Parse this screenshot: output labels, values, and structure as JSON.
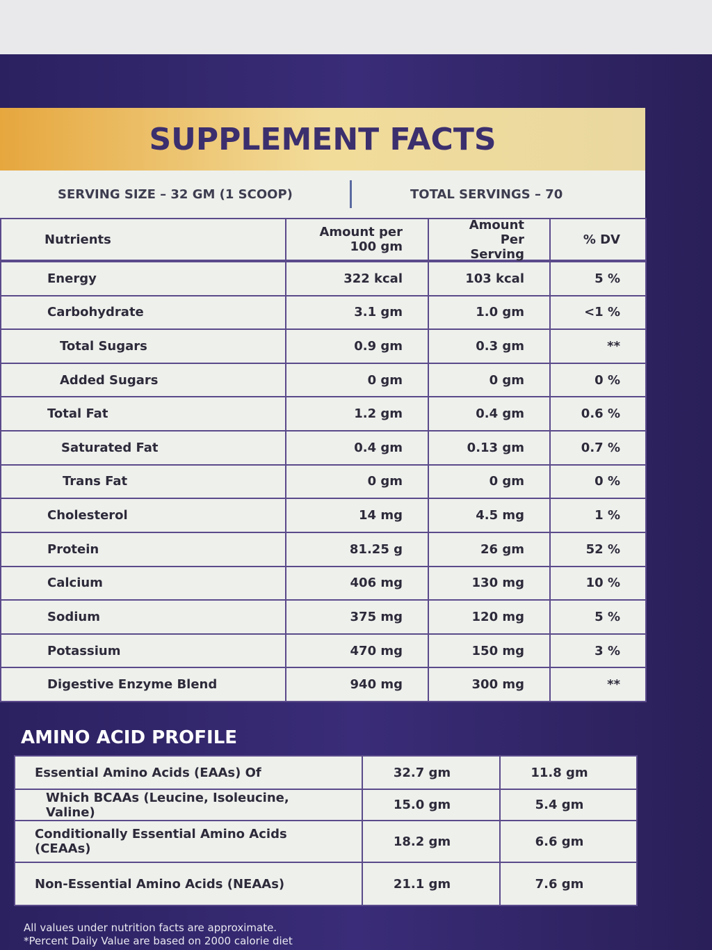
{
  "header": {
    "title": "SUPPLEMENT FACTS",
    "serving_size": "SERVING SIZE – 32 GM (1 SCOOP)",
    "total_servings": "TOTAL SERVINGS – 70"
  },
  "table": {
    "columns": [
      "Nutrients",
      "Amount per 100 gm",
      "Amount Per Serving",
      "% DV"
    ],
    "rows": [
      [
        "Energy",
        "322 kcal",
        "103 kcal",
        "5 %"
      ],
      [
        "Carbohydrate",
        "3.1 gm",
        "1.0 gm",
        "<1 %"
      ],
      [
        "Total Sugars",
        "0.9 gm",
        "0.3 gm",
        "**"
      ],
      [
        "Added Sugars",
        "0 gm",
        "0 gm",
        "0 %"
      ],
      [
        "Total Fat",
        "1.2 gm",
        "0.4 gm",
        "0.6 %"
      ],
      [
        "Saturated Fat",
        "0.4 gm",
        "0.13 gm",
        "0.7 %"
      ],
      [
        "Trans Fat",
        "0 gm",
        "0 gm",
        "0 %"
      ],
      [
        "Cholesterol",
        "14 mg",
        "4.5 mg",
        "1 %"
      ],
      [
        "Protein",
        "81.25 g",
        "26 gm",
        "52 %"
      ],
      [
        "Calcium",
        "406 mg",
        "130 mg",
        "10 %"
      ],
      [
        "Sodium",
        "375 mg",
        "120 mg",
        "5 %"
      ],
      [
        "Potassium",
        "470 mg",
        "150 mg",
        "3 %"
      ],
      [
        "Digestive Enzyme Blend",
        "940 mg",
        "300 mg",
        "**"
      ]
    ]
  },
  "amino": {
    "title": "AMINO ACID PROFILE",
    "rows": [
      [
        "Essential Amino Acids (EAAs) Of",
        "32.7 gm",
        "11.8 gm"
      ],
      [
        "Which BCAAs (Leucine, Isoleucine, Valine)",
        "15.0 gm",
        "5.4 gm"
      ],
      [
        "Conditionally Essential Amino Acids (CEAAs)",
        "18.2 gm",
        "6.6 gm"
      ],
      [
        "Non-Essential Amino Acids (NEAAs)",
        "21.1 gm",
        "7.6 gm"
      ]
    ]
  },
  "footnotes": [
    "All values under nutrition facts are approximate.",
    "*Percent Daily Value are based on 2000 calorie diet"
  ]
}
